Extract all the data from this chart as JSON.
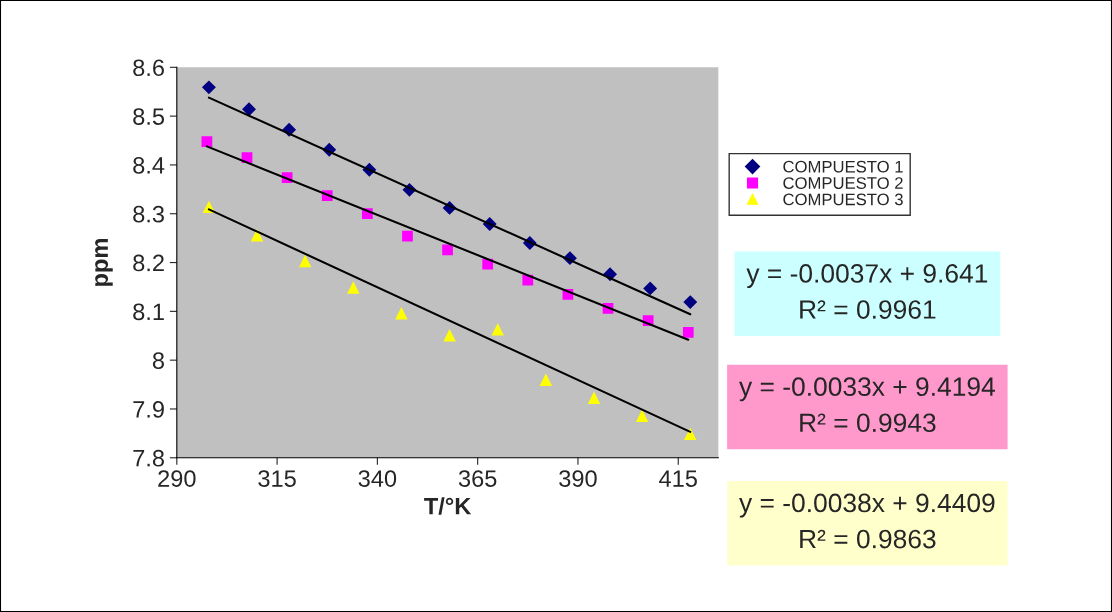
{
  "chart_data": {
    "type": "scatter",
    "xlabel": "T/°K",
    "ylabel": "ppm",
    "xlim": [
      290,
      425
    ],
    "xticks": [
      290,
      315,
      340,
      365,
      390,
      415
    ],
    "ylim": [
      7.8,
      8.6
    ],
    "yticks": [
      7.8,
      7.9,
      8,
      8.1,
      8.2,
      8.3,
      8.4,
      8.5,
      8.6
    ],
    "grid": false,
    "legend": "right",
    "series": [
      {
        "name": "COMPUESTO 1",
        "color": "#000080",
        "marker": "diamond",
        "x": [
          298,
          308,
          318,
          328,
          338,
          348,
          358,
          368,
          378,
          388,
          398,
          408,
          418
        ],
        "values": [
          8.559,
          8.514,
          8.472,
          8.431,
          8.39,
          8.349,
          8.312,
          8.279,
          8.24,
          8.209,
          8.176,
          8.147,
          8.119
        ]
      },
      {
        "name": "COMPUESTO 2",
        "color": "#ff00ff",
        "marker": "square",
        "x": [
          297.5,
          307.5,
          317.5,
          327.5,
          337.5,
          347.5,
          357.5,
          367.5,
          377.5,
          387.5,
          397.5,
          407.5,
          417.5
        ],
        "values": [
          8.448,
          8.415,
          8.374,
          8.337,
          8.3,
          8.254,
          8.226,
          8.197,
          8.164,
          8.135,
          8.106,
          8.081,
          8.057
        ]
      },
      {
        "name": "COMPUESTO 3",
        "color": "#ffff00",
        "marker": "triangle",
        "x": [
          298,
          310,
          322,
          334,
          346,
          358,
          370,
          382,
          394,
          406,
          418
        ],
        "values": [
          8.314,
          8.256,
          8.203,
          8.149,
          8.096,
          8.051,
          8.063,
          7.96,
          7.923,
          7.886,
          7.849
        ]
      },
      {
        "type": "line",
        "color": "#000000",
        "marker": "none",
        "line_style": "solid",
        "x": [
          298,
          418
        ],
        "values": [
          8.538,
          8.094
        ]
      },
      {
        "type": "line",
        "color": "#000000",
        "marker": "none",
        "line_style": "solid",
        "x": [
          297.5,
          417.5
        ],
        "values": [
          8.438,
          8.042
        ]
      },
      {
        "type": "line",
        "color": "#000000",
        "marker": "none",
        "line_style": "solid",
        "x": [
          298,
          418
        ],
        "values": [
          8.309,
          7.853
        ]
      }
    ],
    "annotations": [
      "y = -0.0037x + 9.641\nR² = 0.9961",
      "y = -0.0033x + 9.4194\nR² = 0.9943",
      "y = -0.0038x + 9.4409\nR² = 0.9863"
    ]
  }
}
